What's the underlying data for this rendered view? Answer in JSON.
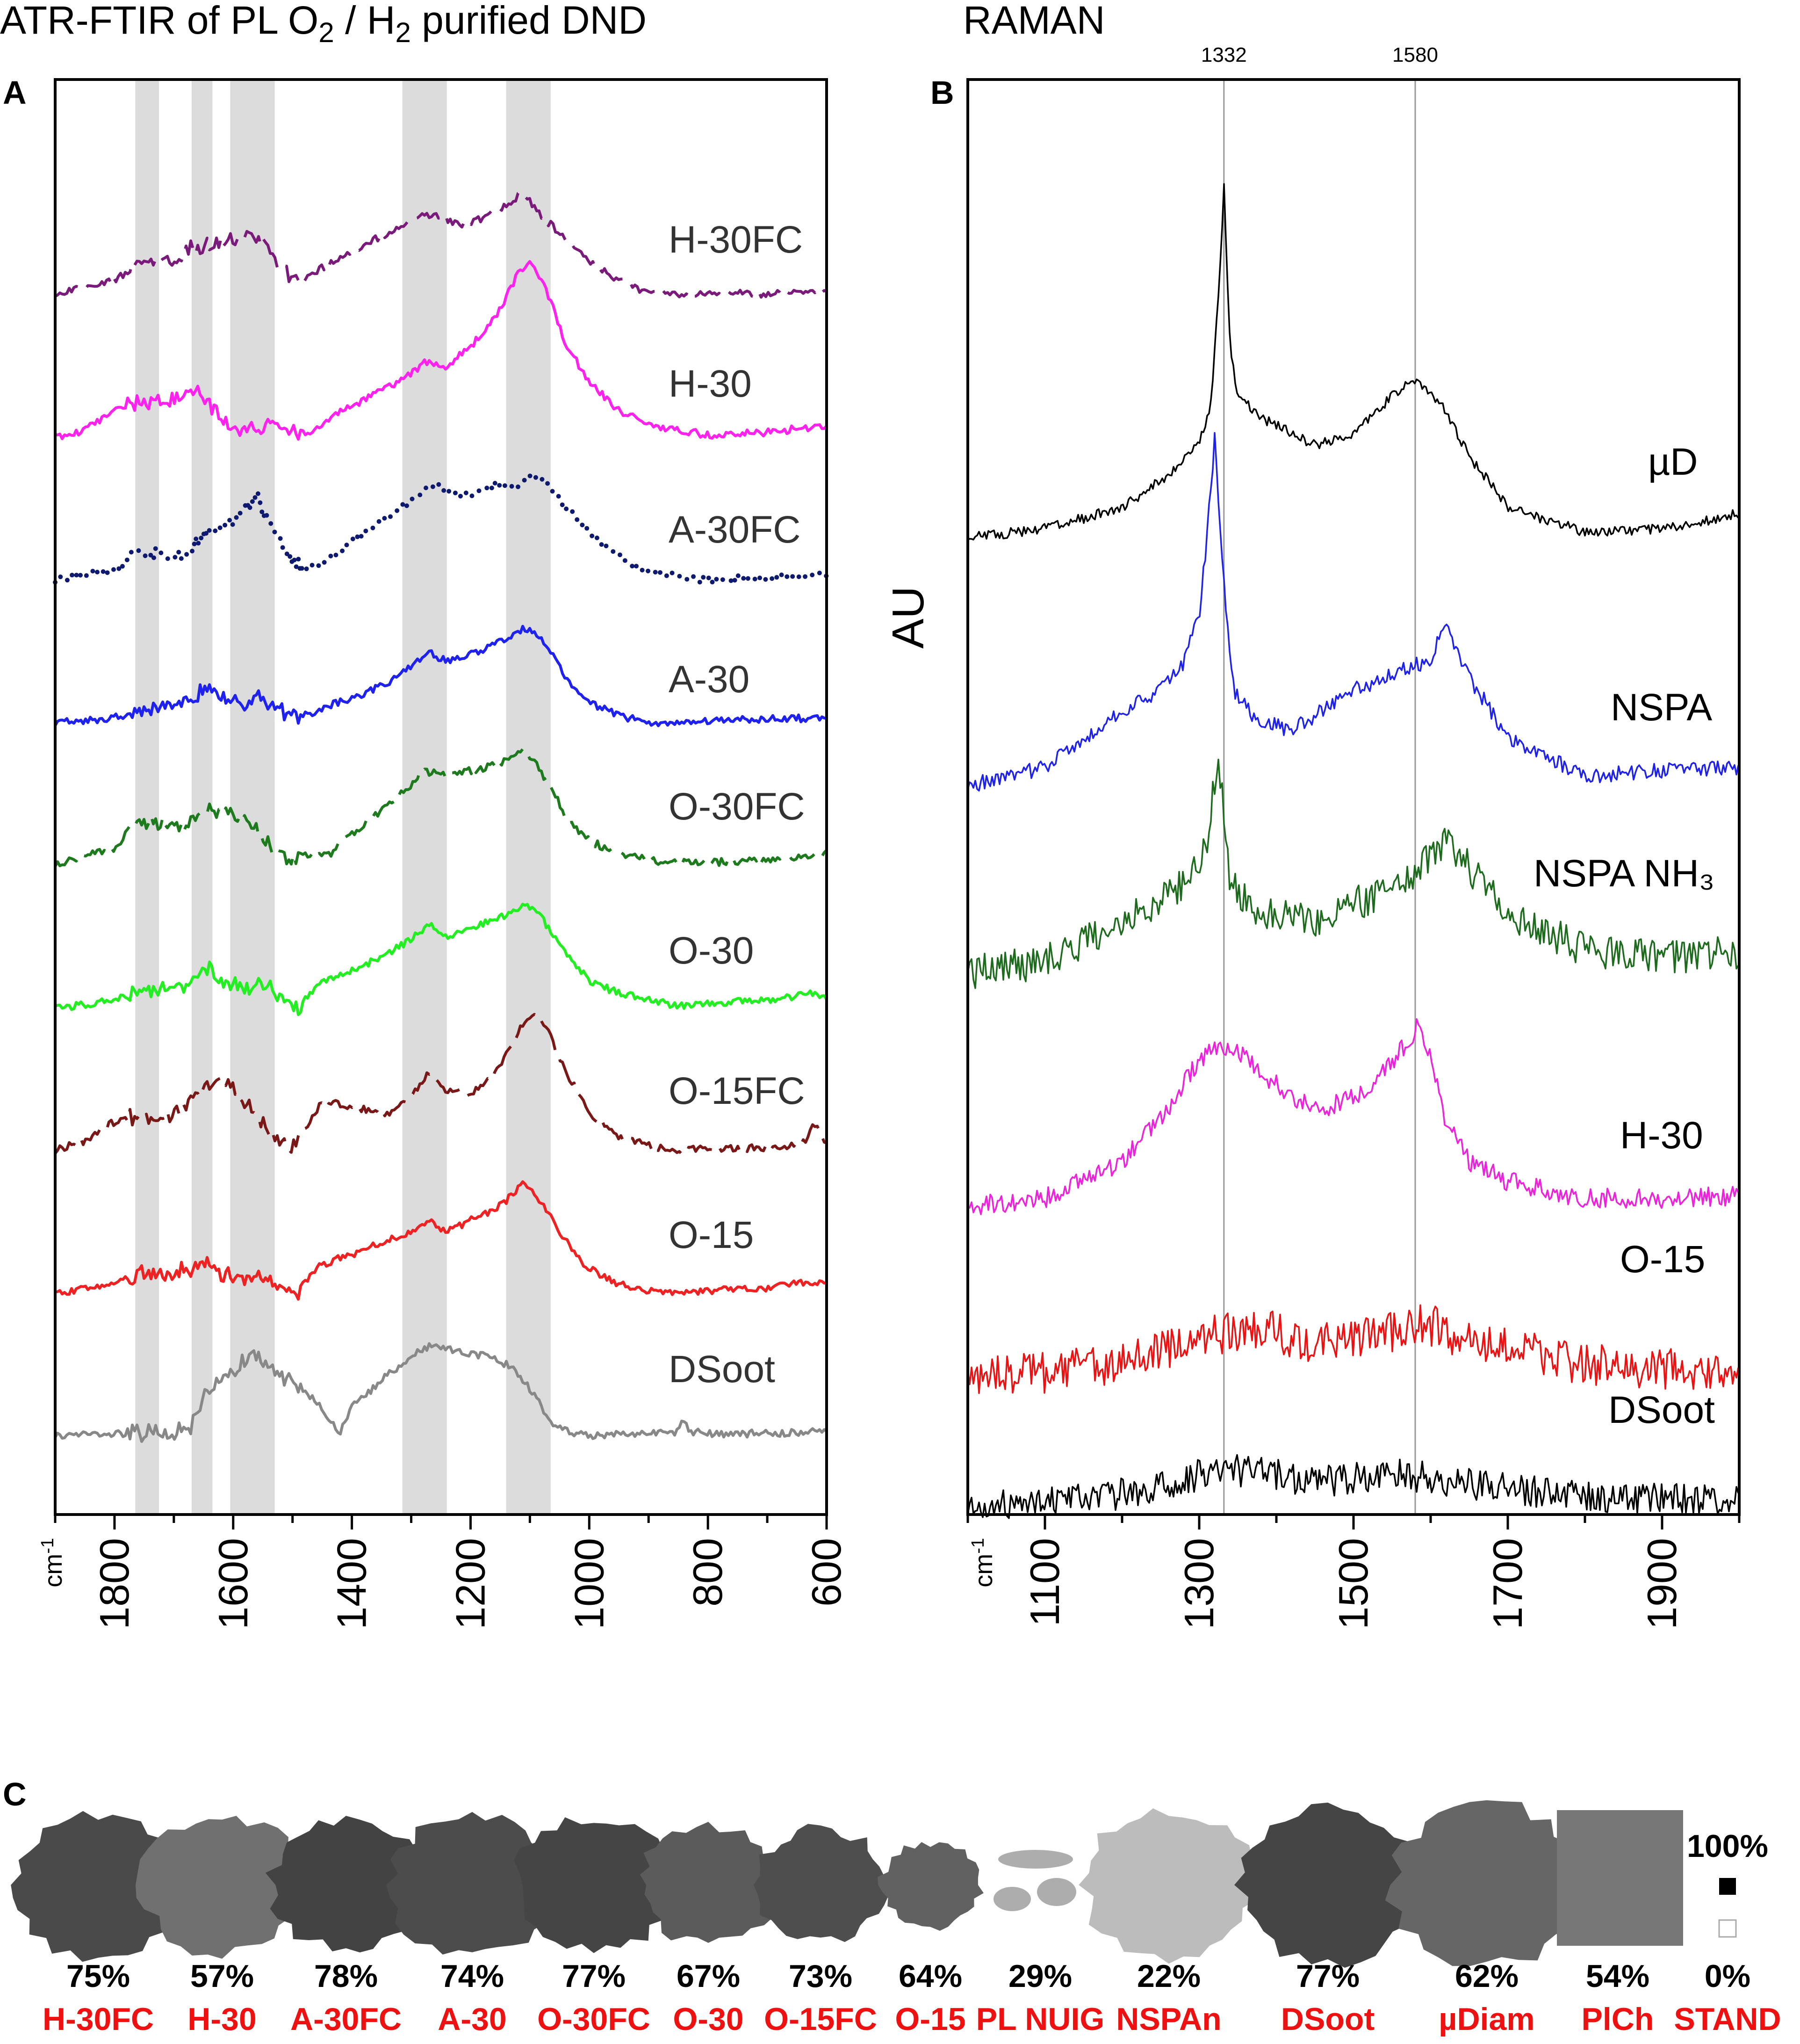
{
  "figure": {
    "panel_a_letter": "A",
    "panel_b_letter": "B",
    "panel_c_letter": "C"
  },
  "chart_data": [
    {
      "panel": "A",
      "type": "line",
      "title": "ATR-FTIR of PL O₂ / H₂ purified DND",
      "xlabel": "cm-1",
      "ylabel": "",
      "xlim": [
        1900,
        600
      ],
      "x_reversed": true,
      "x_ticks": [
        1800,
        1600,
        1400,
        1200,
        1000,
        800,
        600
      ],
      "grid": false,
      "shaded_bands": [
        [
          1765,
          1725
        ],
        [
          1670,
          1635
        ],
        [
          1605,
          1530
        ],
        [
          1315,
          1240
        ],
        [
          1140,
          1065
        ]
      ],
      "series": [
        {
          "name": "H-30FC",
          "color": "#7a1a7a",
          "style": "dashed",
          "offset": 8,
          "x": [
            1900,
            1800,
            1750,
            1700,
            1660,
            1620,
            1580,
            1550,
            1510,
            1490,
            1450,
            1400,
            1350,
            1300,
            1260,
            1220,
            1180,
            1140,
            1110,
            1090,
            1060,
            1030,
            1000,
            950,
            900,
            800,
            700,
            600
          ],
          "y": [
            0.0,
            0.12,
            0.26,
            0.3,
            0.4,
            0.42,
            0.5,
            0.44,
            0.2,
            0.1,
            0.22,
            0.36,
            0.48,
            0.62,
            0.66,
            0.58,
            0.62,
            0.74,
            0.84,
            0.7,
            0.55,
            0.4,
            0.28,
            0.12,
            0.0,
            0.02,
            0.0,
            0.05
          ]
        },
        {
          "name": "H-30",
          "color": "#ff22ee",
          "style": "solid",
          "offset": 7,
          "x": [
            1900,
            1850,
            1800,
            1750,
            1700,
            1660,
            1640,
            1620,
            1590,
            1560,
            1540,
            1500,
            1480,
            1450,
            1400,
            1350,
            1300,
            1270,
            1250,
            1200,
            1150,
            1120,
            1100,
            1080,
            1060,
            1040,
            1000,
            950,
            900,
            800,
            700,
            600
          ],
          "y": [
            0.0,
            0.06,
            0.22,
            0.3,
            0.32,
            0.36,
            0.3,
            0.12,
            0.05,
            0.08,
            0.1,
            0.05,
            0.02,
            0.12,
            0.26,
            0.38,
            0.52,
            0.64,
            0.56,
            0.74,
            1.05,
            1.35,
            1.45,
            1.3,
            1.05,
            0.78,
            0.45,
            0.22,
            0.1,
            0.02,
            0.04,
            0.1
          ]
        },
        {
          "name": "A-30FC",
          "color": "#0d1a70",
          "style": "dotted",
          "offset": 6,
          "x": [
            1900,
            1850,
            1800,
            1760,
            1720,
            1680,
            1650,
            1620,
            1590,
            1560,
            1530,
            1500,
            1480,
            1450,
            1400,
            1350,
            1300,
            1260,
            1230,
            1200,
            1160,
            1130,
            1100,
            1080,
            1040,
            1000,
            950,
            900,
            800,
            700,
            600
          ],
          "y": [
            0.0,
            0.04,
            0.08,
            0.22,
            0.2,
            0.22,
            0.38,
            0.44,
            0.55,
            0.68,
            0.4,
            0.16,
            0.08,
            0.14,
            0.32,
            0.5,
            0.64,
            0.8,
            0.7,
            0.7,
            0.78,
            0.76,
            0.86,
            0.84,
            0.6,
            0.38,
            0.2,
            0.06,
            0.0,
            0.02,
            0.04
          ]
        },
        {
          "name": "A-30",
          "color": "#1f22ee",
          "style": "solid",
          "offset": 5,
          "x": [
            1900,
            1800,
            1750,
            1700,
            1660,
            1640,
            1620,
            1580,
            1550,
            1520,
            1490,
            1450,
            1400,
            1350,
            1300,
            1270,
            1240,
            1200,
            1150,
            1110,
            1090,
            1060,
            1040,
            1000,
            950,
            900,
            800,
            700,
            600
          ],
          "y": [
            0.0,
            0.04,
            0.12,
            0.14,
            0.22,
            0.3,
            0.22,
            0.16,
            0.22,
            0.1,
            0.04,
            0.12,
            0.2,
            0.3,
            0.46,
            0.58,
            0.5,
            0.56,
            0.66,
            0.78,
            0.74,
            0.55,
            0.35,
            0.16,
            0.06,
            0.0,
            0.02,
            0.03,
            0.04
          ]
        },
        {
          "name": "O-30FC",
          "color": "#1d7a1d",
          "style": "dashed",
          "offset": 4,
          "x": [
            1900,
            1850,
            1800,
            1760,
            1720,
            1680,
            1650,
            1600,
            1560,
            1530,
            1500,
            1470,
            1440,
            1400,
            1350,
            1300,
            1280,
            1250,
            1220,
            1180,
            1140,
            1110,
            1090,
            1060,
            1040,
            1000,
            950,
            900,
            800,
            700,
            600
          ],
          "y": [
            0.0,
            0.08,
            0.14,
            0.38,
            0.34,
            0.3,
            0.44,
            0.44,
            0.3,
            0.12,
            0.05,
            0.1,
            0.08,
            0.25,
            0.46,
            0.66,
            0.78,
            0.74,
            0.76,
            0.8,
            0.86,
            0.94,
            0.84,
            0.6,
            0.4,
            0.2,
            0.1,
            0.04,
            0.02,
            0.05,
            0.1
          ]
        },
        {
          "name": "O-30",
          "color": "#22ee22",
          "style": "solid",
          "offset": 3,
          "x": [
            1900,
            1800,
            1750,
            1700,
            1660,
            1640,
            1620,
            1580,
            1550,
            1520,
            1490,
            1460,
            1400,
            1350,
            1300,
            1270,
            1240,
            1200,
            1150,
            1110,
            1090,
            1060,
            1030,
            1000,
            950,
            900,
            850,
            800,
            700,
            620,
            600
          ],
          "y": [
            0.0,
            0.06,
            0.14,
            0.16,
            0.24,
            0.32,
            0.22,
            0.16,
            0.2,
            0.08,
            0.0,
            0.18,
            0.3,
            0.42,
            0.56,
            0.7,
            0.58,
            0.66,
            0.74,
            0.86,
            0.8,
            0.6,
            0.4,
            0.22,
            0.12,
            0.06,
            0.02,
            0.04,
            0.06,
            0.12,
            0.08
          ]
        },
        {
          "name": "O-15FC",
          "color": "#7a1818",
          "style": "dashed",
          "offset": 2,
          "x": [
            1900,
            1850,
            1800,
            1760,
            1720,
            1680,
            1650,
            1630,
            1600,
            1560,
            1530,
            1500,
            1480,
            1450,
            1420,
            1380,
            1340,
            1300,
            1270,
            1240,
            1200,
            1160,
            1130,
            1110,
            1090,
            1070,
            1050,
            1020,
            1000,
            950,
            900,
            850,
            800,
            700,
            640,
            620,
            600
          ],
          "y": [
            0.0,
            0.08,
            0.24,
            0.28,
            0.24,
            0.36,
            0.5,
            0.62,
            0.5,
            0.28,
            0.1,
            0.02,
            0.16,
            0.4,
            0.38,
            0.34,
            0.3,
            0.46,
            0.64,
            0.5,
            0.46,
            0.62,
            0.9,
            1.05,
            1.12,
            1.0,
            0.75,
            0.48,
            0.3,
            0.12,
            0.04,
            0.0,
            0.02,
            0.02,
            0.06,
            0.22,
            0.04
          ]
        },
        {
          "name": "O-15",
          "color": "#ee2222",
          "style": "solid",
          "offset": 1,
          "x": [
            1900,
            1800,
            1750,
            1700,
            1660,
            1640,
            1620,
            1580,
            1550,
            1520,
            1490,
            1460,
            1400,
            1350,
            1300,
            1270,
            1240,
            1200,
            1150,
            1110,
            1090,
            1060,
            1030,
            1000,
            950,
            900,
            850,
            800,
            700,
            620,
            600
          ],
          "y": [
            0.0,
            0.08,
            0.16,
            0.16,
            0.24,
            0.24,
            0.16,
            0.12,
            0.16,
            0.04,
            0.0,
            0.22,
            0.32,
            0.42,
            0.5,
            0.62,
            0.5,
            0.6,
            0.72,
            0.9,
            0.82,
            0.58,
            0.36,
            0.2,
            0.08,
            0.02,
            0.0,
            0.02,
            0.04,
            0.1,
            0.06
          ]
        },
        {
          "name": "DSoot",
          "color": "#888888",
          "style": "solid",
          "offset": 0,
          "x": [
            1900,
            1800,
            1750,
            1700,
            1670,
            1650,
            1620,
            1600,
            1570,
            1550,
            1500,
            1460,
            1430,
            1420,
            1400,
            1380,
            1340,
            1300,
            1270,
            1240,
            1200,
            1160,
            1130,
            1110,
            1090,
            1070,
            1050,
            1020,
            1000,
            950,
            900,
            850,
            840,
            830,
            800,
            700,
            600
          ],
          "y": [
            0.0,
            0.02,
            0.02,
            0.02,
            0.08,
            0.3,
            0.46,
            0.52,
            0.68,
            0.62,
            0.42,
            0.28,
            0.1,
            0.02,
            0.24,
            0.32,
            0.5,
            0.66,
            0.74,
            0.72,
            0.68,
            0.64,
            0.56,
            0.44,
            0.34,
            0.14,
            0.06,
            0.02,
            0.0,
            0.02,
            0.02,
            0.03,
            0.14,
            0.04,
            0.02,
            0.02,
            0.04
          ]
        }
      ]
    },
    {
      "panel": "B",
      "type": "line",
      "title": "RAMAN",
      "xlabel": "cm-1",
      "ylabel": "AU",
      "xlim": [
        1000,
        2000
      ],
      "x_ticks": [
        1100,
        1300,
        1500,
        1700,
        1900
      ],
      "grid": false,
      "reference_lines": [
        {
          "x": 1332,
          "label": "1332"
        },
        {
          "x": 1580,
          "label": "1580"
        }
      ],
      "series": [
        {
          "name": "µD",
          "color": "#000000",
          "offset": 5,
          "x": [
            1000,
            1100,
            1200,
            1250,
            1300,
            1315,
            1325,
            1332,
            1340,
            1350,
            1380,
            1450,
            1500,
            1550,
            1580,
            1610,
            1650,
            1700,
            1800,
            1900,
            2000
          ],
          "y": [
            0.0,
            0.06,
            0.2,
            0.38,
            0.62,
            0.9,
            1.6,
            2.35,
            1.3,
            0.95,
            0.8,
            0.62,
            0.68,
            0.95,
            1.06,
            0.92,
            0.55,
            0.2,
            0.04,
            0.06,
            0.16
          ]
        },
        {
          "name": "NSPA",
          "color": "#1f22ee",
          "offset": 4,
          "x": [
            1000,
            1100,
            1200,
            1250,
            1280,
            1300,
            1310,
            1320,
            1330,
            1345,
            1370,
            1420,
            1500,
            1550,
            1600,
            1620,
            1650,
            1700,
            1800,
            1900,
            2000
          ],
          "y": [
            0.0,
            0.12,
            0.48,
            0.62,
            0.8,
            1.1,
            1.6,
            2.25,
            1.4,
            0.62,
            0.44,
            0.36,
            0.62,
            0.72,
            0.82,
            1.06,
            0.7,
            0.32,
            0.06,
            0.1,
            0.12
          ]
        },
        {
          "name": "NSPA NH₃",
          "color": "#1d6b1d",
          "offset": 3,
          "x": [
            1000,
            1100,
            1200,
            1280,
            1310,
            1325,
            1340,
            1380,
            1450,
            1550,
            1600,
            1620,
            1700,
            1800,
            1900,
            2000
          ],
          "y": [
            0.0,
            0.08,
            0.36,
            0.6,
            0.9,
            1.5,
            0.62,
            0.4,
            0.36,
            0.58,
            0.8,
            0.92,
            0.4,
            0.16,
            0.1,
            0.14
          ]
        },
        {
          "name": "H-30",
          "color": "#ee22dd",
          "offset": 2,
          "x": [
            1000,
            1100,
            1200,
            1260,
            1300,
            1340,
            1380,
            1420,
            1460,
            1520,
            1560,
            1585,
            1600,
            1620,
            1650,
            1700,
            1800,
            1900,
            2000
          ],
          "y": [
            0.0,
            0.06,
            0.32,
            0.7,
            1.06,
            1.16,
            0.96,
            0.78,
            0.7,
            0.84,
            1.1,
            1.3,
            1.1,
            0.6,
            0.32,
            0.18,
            0.06,
            0.06,
            0.08
          ]
        },
        {
          "name": "O-15",
          "color": "#ee1111",
          "offset": 1,
          "x": [
            1000,
            1200,
            1330,
            1380,
            1450,
            1550,
            1590,
            1650,
            1800,
            2000
          ],
          "y": [
            0.0,
            0.12,
            0.36,
            0.4,
            0.28,
            0.36,
            0.44,
            0.3,
            0.12,
            0.06
          ]
        },
        {
          "name": "DSoot",
          "color": "#000000",
          "offset": 0,
          "x": [
            1000,
            1200,
            1330,
            1380,
            1450,
            1550,
            1590,
            1650,
            1800,
            2000
          ],
          "y": [
            0.0,
            0.1,
            0.3,
            0.28,
            0.2,
            0.26,
            0.24,
            0.18,
            0.08,
            0.04
          ]
        }
      ]
    },
    {
      "panel": "C",
      "type": "table",
      "title": "",
      "legend_top": "100%",
      "samples": [
        {
          "percent": "75%",
          "name": "H-30FC",
          "fraction": 0.75
        },
        {
          "percent": "57%",
          "name": "H-30",
          "fraction": 0.57
        },
        {
          "percent": "78%",
          "name": "A-30FC",
          "fraction": 0.78
        },
        {
          "percent": "74%",
          "name": "A-30",
          "fraction": 0.74
        },
        {
          "percent": "77%",
          "name": "O-30FC",
          "fraction": 0.77
        },
        {
          "percent": "67%",
          "name": "O-30",
          "fraction": 0.67
        },
        {
          "percent": "73%",
          "name": "O-15FC",
          "fraction": 0.73
        },
        {
          "percent": "64%",
          "name": "O-15",
          "fraction": 0.64
        },
        {
          "percent": "29%",
          "name": "PL NUIG",
          "fraction": 0.29
        },
        {
          "percent": "22%",
          "name": "NSPAn",
          "fraction": 0.22
        },
        {
          "percent": "77%",
          "name": "DSoot",
          "fraction": 0.77
        },
        {
          "percent": "62%",
          "name": "µDiam",
          "fraction": 0.62
        },
        {
          "percent": "54%",
          "name": "PlCh",
          "fraction": 0.54
        },
        {
          "percent": "0%",
          "name": "STAND",
          "fraction": 0.0
        }
      ]
    }
  ]
}
